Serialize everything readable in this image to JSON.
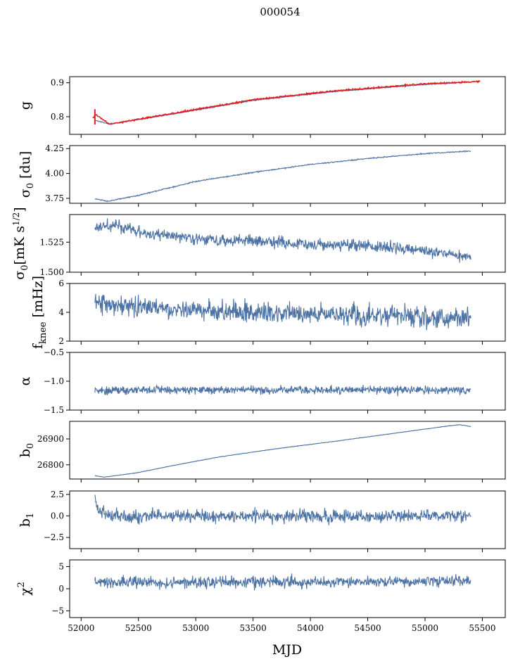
{
  "title": "000054",
  "xlabel": "MJD",
  "colors": {
    "series": "#4c72a4",
    "overlay": "#e41a1c"
  },
  "chart_data": [
    {
      "type": "line",
      "ylabel": "g",
      "xlim": [
        51900,
        55700
      ],
      "ylim": [
        0.748,
        0.918
      ],
      "yticks": [
        0.8,
        0.9
      ],
      "ytick_labels": [
        "0.8",
        "0.9"
      ],
      "x_start": 52120,
      "x_end": 55400,
      "trend": [
        [
          52120,
          0.79
        ],
        [
          52250,
          0.778
        ],
        [
          52800,
          0.808
        ],
        [
          53500,
          0.848
        ],
        [
          54200,
          0.874
        ],
        [
          55000,
          0.895
        ],
        [
          55400,
          0.902
        ]
      ],
      "noise": 0.001,
      "overlay": {
        "x_start": 52100,
        "x_end": 55480,
        "trend": [
          [
            52100,
            0.795
          ],
          [
            52130,
            0.805
          ],
          [
            52250,
            0.778
          ],
          [
            52800,
            0.81
          ],
          [
            53500,
            0.85
          ],
          [
            54200,
            0.876
          ],
          [
            55000,
            0.897
          ],
          [
            55480,
            0.904
          ]
        ],
        "noise": 0.0015
      }
    },
    {
      "type": "line",
      "ylabel": "σ0 [du]",
      "xlim": [
        51900,
        55700
      ],
      "ylim": [
        3.7,
        4.28
      ],
      "yticks": [
        3.75,
        4.0,
        4.25
      ],
      "ytick_labels": [
        "3.75",
        "4.00",
        "4.25"
      ],
      "x_start": 52120,
      "x_end": 55400,
      "trend": [
        [
          52120,
          3.745
        ],
        [
          52230,
          3.72
        ],
        [
          52500,
          3.78
        ],
        [
          53000,
          3.92
        ],
        [
          53500,
          4.01
        ],
        [
          54000,
          4.09
        ],
        [
          54500,
          4.15
        ],
        [
          55000,
          4.2
        ],
        [
          55400,
          4.225
        ]
      ],
      "noise": 0.004
    },
    {
      "type": "line",
      "ylabel": "σ0[mK s^1/2]",
      "xlim": [
        51900,
        55700
      ],
      "ylim": [
        1.5,
        1.548
      ],
      "yticks": [
        1.5,
        1.525
      ],
      "ytick_labels": [
        "1.500",
        "1.525"
      ],
      "x_start": 52120,
      "x_end": 55400,
      "trend": [
        [
          52120,
          1.537
        ],
        [
          52300,
          1.539
        ],
        [
          52600,
          1.532
        ],
        [
          53000,
          1.528
        ],
        [
          53500,
          1.526
        ],
        [
          54000,
          1.523
        ],
        [
          54500,
          1.522
        ],
        [
          55000,
          1.518
        ],
        [
          55400,
          1.512
        ]
      ],
      "noise": 0.0035
    },
    {
      "type": "line",
      "ylabel": "fknee [mHz]",
      "xlim": [
        51900,
        55700
      ],
      "ylim": [
        2,
        6
      ],
      "yticks": [
        2,
        4,
        6
      ],
      "ytick_labels": [
        "2",
        "4",
        "6"
      ],
      "x_start": 52120,
      "x_end": 55400,
      "trend": [
        [
          52120,
          4.6
        ],
        [
          52500,
          4.4
        ],
        [
          53000,
          4.1
        ],
        [
          54000,
          3.9
        ],
        [
          55000,
          3.7
        ],
        [
          55400,
          3.6
        ]
      ],
      "noise": 0.5
    },
    {
      "type": "line",
      "ylabel": "α",
      "xlim": [
        51900,
        55700
      ],
      "ylim": [
        -1.5,
        -0.5
      ],
      "yticks": [
        -1.5,
        -1.0,
        -0.5
      ],
      "ytick_labels": [
        "−1.5",
        "−1.0",
        "−0.5"
      ],
      "x_start": 52120,
      "x_end": 55400,
      "trend": [
        [
          52120,
          -1.15
        ],
        [
          55400,
          -1.15
        ]
      ],
      "noise": 0.05
    },
    {
      "type": "line",
      "ylabel": "b0",
      "xlim": [
        51900,
        55700
      ],
      "ylim": [
        26745,
        26968
      ],
      "yticks": [
        26800,
        26900
      ],
      "ytick_labels": [
        "26800",
        "26900"
      ],
      "x_start": 52120,
      "x_end": 55400,
      "trend": [
        [
          52120,
          26758
        ],
        [
          52200,
          26752
        ],
        [
          52500,
          26770
        ],
        [
          52800,
          26797
        ],
        [
          53200,
          26830
        ],
        [
          53700,
          26862
        ],
        [
          54200,
          26890
        ],
        [
          54700,
          26920
        ],
        [
          55200,
          26950
        ],
        [
          55300,
          26955
        ],
        [
          55400,
          26948
        ]
      ],
      "noise": 0.6
    },
    {
      "type": "line",
      "ylabel": "b1",
      "xlim": [
        51900,
        55700
      ],
      "ylim": [
        -3.8,
        2.9
      ],
      "yticks": [
        -2.5,
        0.0,
        2.5
      ],
      "ytick_labels": [
        "−2.5",
        "0.0",
        "2.5"
      ],
      "x_start": 52120,
      "x_end": 55400,
      "trend": [
        [
          52120,
          2.2
        ],
        [
          52150,
          0.5
        ],
        [
          52300,
          0
        ],
        [
          55400,
          0
        ]
      ],
      "noise": 0.55
    },
    {
      "type": "line",
      "ylabel": "χ^2",
      "xlim": [
        51900,
        55700
      ],
      "ylim": [
        -6.5,
        6.5
      ],
      "yticks": [
        -5,
        0,
        5
      ],
      "ytick_labels": [
        "−5",
        "0",
        "5"
      ],
      "xticks": [
        52000,
        52500,
        53000,
        53500,
        54000,
        54500,
        55000,
        55500
      ],
      "xtick_labels": [
        "52000",
        "52500",
        "53000",
        "53500",
        "54000",
        "54500",
        "55000",
        "55500"
      ],
      "x_start": 52120,
      "x_end": 55400,
      "trend": [
        [
          52120,
          1.3
        ],
        [
          55400,
          1.8
        ]
      ],
      "noise": 0.9
    }
  ]
}
